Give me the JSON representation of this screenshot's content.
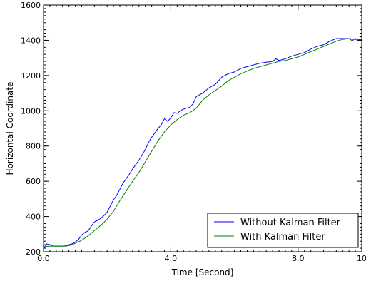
{
  "chart_data": {
    "type": "line",
    "title": "",
    "xlabel": "Time [Second]",
    "ylabel": "Horizontal Coordinate",
    "xlim": [
      0.0,
      10.0
    ],
    "ylim": [
      200,
      1600
    ],
    "xticks": [
      0.0,
      4.0,
      8.0,
      10
    ],
    "xtick_labels": [
      "0.0",
      "4.0",
      "8.0",
      "10"
    ],
    "yticks": [
      200,
      400,
      600,
      800,
      1000,
      1200,
      1400,
      1600
    ],
    "ytick_labels": [
      "200",
      "400",
      "600",
      "800",
      "1000",
      "1200",
      "1400",
      "1600"
    ],
    "legend_position": "bottom-right",
    "grid": false,
    "series": [
      {
        "name": "Without Kalman Filter",
        "color": "#0000ff",
        "x": [
          0.0,
          0.1,
          0.2,
          0.3,
          0.4,
          0.5,
          0.6,
          0.7,
          0.8,
          0.9,
          1.0,
          1.1,
          1.2,
          1.3,
          1.4,
          1.5,
          1.6,
          1.7,
          1.8,
          1.9,
          2.0,
          2.1,
          2.2,
          2.3,
          2.4,
          2.5,
          2.6,
          2.7,
          2.8,
          2.9,
          3.0,
          3.1,
          3.2,
          3.3,
          3.4,
          3.5,
          3.6,
          3.7,
          3.8,
          3.9,
          4.0,
          4.1,
          4.2,
          4.3,
          4.4,
          4.5,
          4.6,
          4.7,
          4.8,
          4.9,
          5.0,
          5.2,
          5.4,
          5.6,
          5.8,
          6.0,
          6.2,
          6.4,
          6.6,
          6.8,
          7.0,
          7.2,
          7.3,
          7.4,
          7.6,
          7.8,
          8.0,
          8.2,
          8.4,
          8.6,
          8.8,
          9.0,
          9.2,
          9.4,
          9.6,
          9.7,
          9.8,
          9.9,
          10.0
        ],
        "y": [
          220,
          245,
          240,
          232,
          232,
          232,
          232,
          234,
          240,
          245,
          255,
          270,
          295,
          310,
          318,
          345,
          370,
          378,
          390,
          405,
          425,
          460,
          495,
          520,
          555,
          590,
          615,
          640,
          670,
          695,
          720,
          750,
          780,
          820,
          850,
          875,
          900,
          920,
          955,
          940,
          960,
          990,
          985,
          1000,
          1010,
          1015,
          1020,
          1040,
          1080,
          1090,
          1100,
          1130,
          1150,
          1190,
          1210,
          1220,
          1240,
          1250,
          1260,
          1270,
          1275,
          1280,
          1295,
          1285,
          1295,
          1310,
          1320,
          1330,
          1350,
          1365,
          1375,
          1395,
          1410,
          1410,
          1410,
          1398,
          1410,
          1402,
          1405
        ]
      },
      {
        "name": "With Kalman Filter",
        "color": "#008000",
        "x": [
          0.0,
          0.1,
          0.2,
          0.3,
          0.4,
          0.5,
          0.6,
          0.7,
          0.8,
          0.9,
          1.0,
          1.2,
          1.4,
          1.6,
          1.8,
          2.0,
          2.2,
          2.4,
          2.6,
          2.8,
          3.0,
          3.2,
          3.4,
          3.6,
          3.8,
          4.0,
          4.2,
          4.4,
          4.6,
          4.8,
          5.0,
          5.2,
          5.4,
          5.6,
          5.8,
          6.0,
          6.2,
          6.4,
          6.6,
          6.8,
          7.0,
          7.2,
          7.4,
          7.6,
          7.8,
          8.0,
          8.2,
          8.4,
          8.6,
          8.8,
          9.0,
          9.2,
          9.4,
          9.6,
          9.8,
          10.0
        ],
        "y": [
          220,
          230,
          232,
          232,
          231,
          231,
          231,
          232,
          235,
          240,
          248,
          265,
          290,
          320,
          350,
          385,
          430,
          490,
          545,
          600,
          650,
          710,
          770,
          830,
          880,
          920,
          950,
          975,
          990,
          1015,
          1060,
          1090,
          1115,
          1140,
          1170,
          1190,
          1210,
          1225,
          1240,
          1250,
          1260,
          1270,
          1280,
          1285,
          1295,
          1305,
          1320,
          1335,
          1350,
          1365,
          1380,
          1395,
          1405,
          1410,
          1405,
          1405
        ]
      }
    ]
  }
}
